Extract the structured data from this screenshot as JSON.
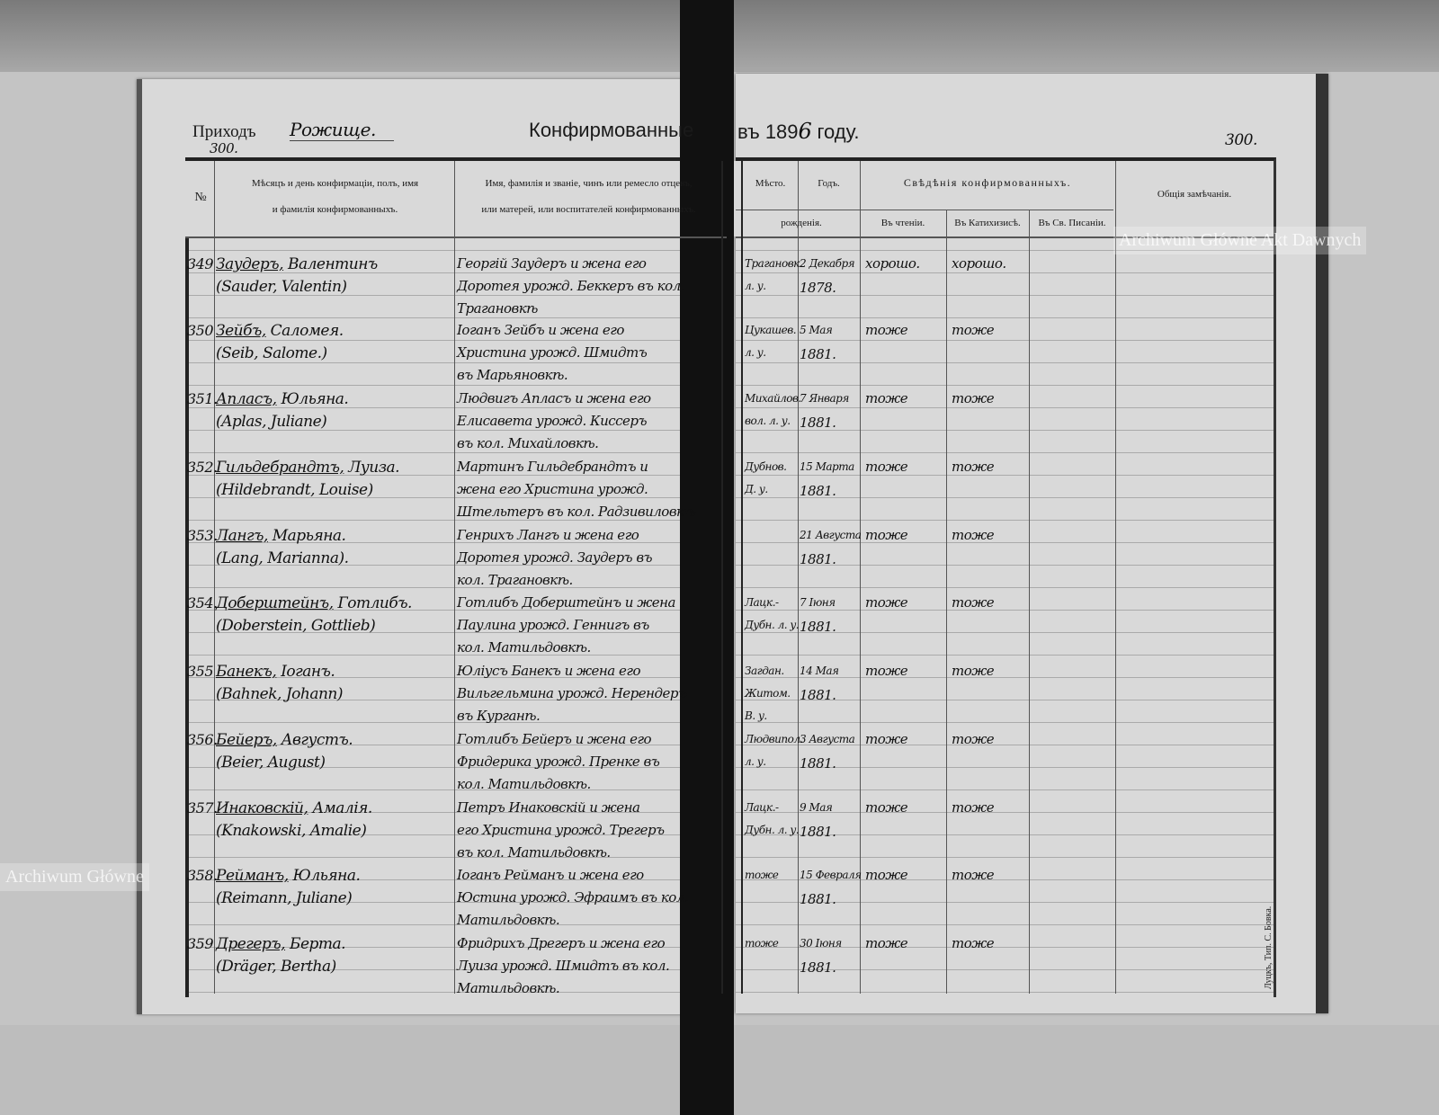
{
  "header": {
    "parish_label": "Приходъ",
    "parish_value": "Рожище.",
    "title": "Конфирмованные",
    "year_prefix": "въ 189",
    "year_digit": "6",
    "year_suffix": "году.",
    "page_number_left": "300.",
    "page_number_right": "300."
  },
  "columns": {
    "number": "№",
    "name_line1": "Мѣсяцъ и день конфирмаціи, полъ, имя",
    "name_line2": "и фамилія конфирмованныхъ.",
    "parents_line1": "Имя, фамилія и званіе, чинъ или ремесло отцевъ,",
    "parents_line2": "или матерей, или воспитателей конфирмованныхъ.",
    "place": "Мѣсто.",
    "year": "Годъ.",
    "birth": "рожденія.",
    "info": "Свѣдѣнія конфирмованныхъ.",
    "reading": "Въ чтеніи.",
    "catechism": "Въ Катихизисѣ.",
    "scripture": "Въ Св. Писаніи.",
    "remarks": "Общія замѣчанія."
  },
  "entries": [
    {
      "no": "349",
      "surname": "Заудеръ,",
      "given": "Валентинъ",
      "latin": "(Sauder, Valentin)",
      "parents": [
        "Георгій Заудеръ и жена его",
        "Доротея урожд. Беккеръ въ кол.",
        "Трагановкѣ"
      ],
      "place": [
        "Трагановк.",
        "л. у."
      ],
      "date": [
        "2 Декабря",
        "1878."
      ],
      "reading": "хорошо.",
      "catechism": "хорошо."
    },
    {
      "no": "350",
      "surname": "Зейбъ,",
      "given": "Саломея.",
      "latin": "(Seib, Salome.)",
      "parents": [
        "Іоганъ Зейбъ и жена его",
        "Христина урожд. Шмидтъ",
        "въ Марьяновкѣ."
      ],
      "place": [
        "Цукашев.",
        "л. у."
      ],
      "date": [
        "5 Мая",
        "1881."
      ],
      "reading": "тоже",
      "catechism": "тоже"
    },
    {
      "no": "351.",
      "surname": "Апласъ,",
      "given": "Юльяна.",
      "latin": "(Aplas, Juliane)",
      "parents": [
        "Людвигъ Апласъ и жена его",
        "Елисавета урожд. Киссеръ",
        "въ кол. Михайловкѣ."
      ],
      "place": [
        "Михайлов.",
        "вол. л. у."
      ],
      "date": [
        "7 Января",
        "1881."
      ],
      "reading": "тоже",
      "catechism": "тоже"
    },
    {
      "no": "352.",
      "surname": "Гильдебрандтъ,",
      "given": "Луиза.",
      "latin": "(Hildebrandt, Louise)",
      "parents": [
        "Мартинъ Гильдебрандтъ и",
        "жена его Христина урожд.",
        "Штельтеръ въ кол. Радзивиловкѣ"
      ],
      "place": [
        "Дубнов.",
        "Д. у."
      ],
      "date": [
        "15 Марта",
        "1881."
      ],
      "reading": "тоже",
      "catechism": "тоже"
    },
    {
      "no": "353.",
      "surname": "Лангъ,",
      "given": "Марьяна.",
      "latin": "(Lang, Marianna).",
      "parents": [
        "Генрихъ Лангъ и жена его",
        "Доротея урожд. Заудеръ въ",
        "кол. Трагановкѣ."
      ],
      "place": [
        "",
        ""
      ],
      "date": [
        "21 Августа",
        "1881."
      ],
      "reading": "тоже",
      "catechism": "тоже"
    },
    {
      "no": "354.",
      "surname": "Доберштейнъ,",
      "given": "Готлибъ.",
      "latin": "(Doberstein, Gottlieb)",
      "parents": [
        "Готлибъ Доберштейнъ и жена",
        "Паулина урожд. Геннигъ въ",
        "кол. Матильдовкѣ."
      ],
      "place": [
        "Лацк.-",
        "Дубн. л. у."
      ],
      "date": [
        "7 Іюня",
        "1881."
      ],
      "reading": "тоже",
      "catechism": "тоже"
    },
    {
      "no": "355",
      "surname": "Банекъ,",
      "given": "Іоганъ.",
      "latin": "(Bahnek, Johann)",
      "parents": [
        "Юліусъ Банекъ и жена его",
        "Вильгельмина урожд. Нерендеръ",
        "въ Курганѣ."
      ],
      "place": [
        "Загдан.",
        "Житом.",
        "В. у."
      ],
      "date": [
        "14 Мая",
        "1881."
      ],
      "reading": "тоже",
      "catechism": "тоже"
    },
    {
      "no": "356.",
      "surname": "Бейеръ,",
      "given": "Августъ.",
      "latin": "(Beier, August)",
      "parents": [
        "Готлибъ Бейеръ и жена его",
        "Фридерика урожд. Пренке въ",
        "кол. Матильдовкѣ."
      ],
      "place": [
        "Людвипол.",
        "л. у."
      ],
      "date": [
        "3 Августа",
        "1881."
      ],
      "reading": "тоже",
      "catechism": "тоже"
    },
    {
      "no": "357.",
      "surname": "Инаковскій,",
      "given": "Амалія.",
      "latin": "(Knakowski, Amalie)",
      "parents": [
        "Петръ Инаковскій и жена",
        "его Христина урожд. Трегеръ",
        "въ кол. Матильдовкѣ."
      ],
      "place": [
        "Лацк.-",
        "Дубн. л. у."
      ],
      "date": [
        "9 Мая",
        "1881."
      ],
      "reading": "тоже",
      "catechism": "тоже"
    },
    {
      "no": "358.",
      "surname": "Рейманъ,",
      "given": "Юльяна.",
      "latin": "(Reimann, Juliane)",
      "parents": [
        "Іоганъ Рейманъ и жена его",
        "Юстина урожд. Эфраимъ въ кол.",
        "Матильдовкѣ."
      ],
      "place": [
        "тоже",
        ""
      ],
      "date": [
        "15 Февраля",
        "1881."
      ],
      "reading": "тоже",
      "catechism": "тоже"
    },
    {
      "no": "359",
      "surname": "Дрегеръ,",
      "given": "Берта.",
      "latin": "(Dräger, Bertha)",
      "parents": [
        "Фридрихъ Дрегеръ и жена его",
        "Луиза урожд. Шмидтъ въ кол.",
        "Матильдовкѣ."
      ],
      "place": [
        "тоже",
        ""
      ],
      "date": [
        "30 Іюня",
        "1881."
      ],
      "reading": "тоже",
      "catechism": "тоже"
    }
  ],
  "printer_note": "Луцкъ, Тип. С. Бовка.",
  "watermarks": {
    "right": "Archiwum Główne Akt Dawnych",
    "left": "Archiwum Główne"
  }
}
